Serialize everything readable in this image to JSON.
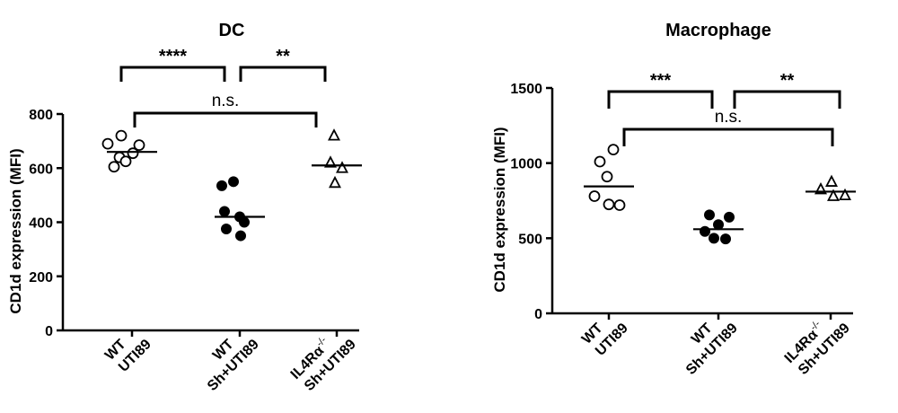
{
  "chart_data": [
    {
      "type": "scatter",
      "title": "DC",
      "ylabel": "CD1d expression (MFI)",
      "xlabel": "",
      "ylim": [
        0,
        800
      ],
      "yticks": [
        0,
        200,
        400,
        600,
        800
      ],
      "grid": false,
      "categories": [
        {
          "lines": [
            "WT",
            "UTI89"
          ]
        },
        {
          "lines": [
            "WT",
            "Sh+UTI89"
          ]
        },
        {
          "lines": [
            "IL4Rα",
            "Sh+UTI89"
          ],
          "superscript": "-/-"
        }
      ],
      "series": [
        {
          "marker": "open-circle",
          "mean": 660,
          "points": [
            720,
            685,
            690,
            655,
            640,
            605,
            625
          ]
        },
        {
          "marker": "filled-circle",
          "mean": 420,
          "points": [
            550,
            535,
            440,
            420,
            400,
            375,
            350
          ]
        },
        {
          "marker": "open-triangle",
          "mean": 610,
          "points": [
            720,
            620,
            600,
            545
          ]
        }
      ],
      "annotations": [
        {
          "label": "****",
          "from": 0,
          "to": 1,
          "level": 1
        },
        {
          "label": "**",
          "from": 1,
          "to": 2,
          "level": 1
        },
        {
          "label": "n.s.",
          "from": 0,
          "to": 2,
          "level": 0
        }
      ]
    },
    {
      "type": "scatter",
      "title": "Macrophage",
      "ylabel": "CD1d expression (MFI)",
      "xlabel": "",
      "ylim": [
        0,
        1500
      ],
      "yticks": [
        0,
        500,
        1000,
        1500
      ],
      "grid": false,
      "categories": [
        {
          "lines": [
            "WT",
            "UTI89"
          ]
        },
        {
          "lines": [
            "WT",
            "Sh+UTI89"
          ]
        },
        {
          "lines": [
            "IL4Rα",
            "Sh+UTI89"
          ],
          "superscript": "-/-"
        }
      ],
      "series": [
        {
          "marker": "open-circle",
          "mean": 845,
          "points": [
            1090,
            1010,
            910,
            780,
            725,
            720
          ]
        },
        {
          "marker": "filled-circle",
          "mean": 560,
          "points": [
            655,
            640,
            590,
            545,
            500,
            495
          ]
        },
        {
          "marker": "open-triangle",
          "mean": 810,
          "points": [
            875,
            825,
            785,
            780
          ]
        }
      ],
      "annotations": [
        {
          "label": "***",
          "from": 0,
          "to": 1,
          "level": 1
        },
        {
          "label": "**",
          "from": 1,
          "to": 2,
          "level": 1
        },
        {
          "label": "n.s.",
          "from": 0,
          "to": 2,
          "level": 0
        }
      ]
    }
  ]
}
